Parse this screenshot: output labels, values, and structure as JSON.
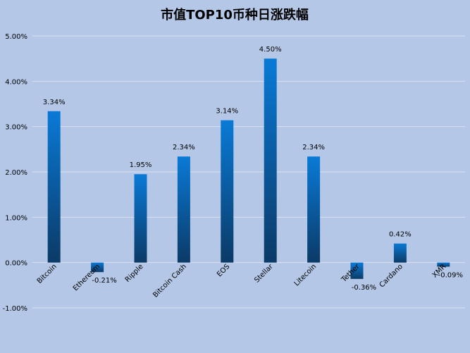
{
  "chart_data": {
    "type": "bar",
    "title": "市值TOP10币种日涨跌幅",
    "categories": [
      "Bitcoin",
      "Ethereum",
      "Ripple",
      "Bitcoin Cash",
      "EOS",
      "Stellar",
      "Litecoin",
      "Tether",
      "Cardano",
      "XMR"
    ],
    "values": [
      3.34,
      -0.21,
      1.95,
      2.34,
      3.14,
      4.5,
      2.34,
      -0.36,
      0.42,
      -0.09
    ],
    "data_labels": [
      "3.34%",
      "-0.21%",
      "1.95%",
      "2.34%",
      "3.14%",
      "4.50%",
      "2.34%",
      "-0.36%",
      "0.42%",
      "-0.09%"
    ],
    "y_ticks": [
      "-1.00%",
      "0.00%",
      "1.00%",
      "2.00%",
      "3.00%",
      "4.00%",
      "5.00%"
    ],
    "y_tick_values": [
      -1,
      0,
      1,
      2,
      3,
      4,
      5
    ],
    "ylim": [
      -1,
      5
    ],
    "xlabel": "",
    "ylabel": "",
    "grid": true,
    "legend": "none",
    "colors": {
      "background": "#b4c7e7",
      "bar_top": "#0a7ad6",
      "bar_bottom": "#0b3a66",
      "gridline": "#d9e2f2"
    }
  }
}
